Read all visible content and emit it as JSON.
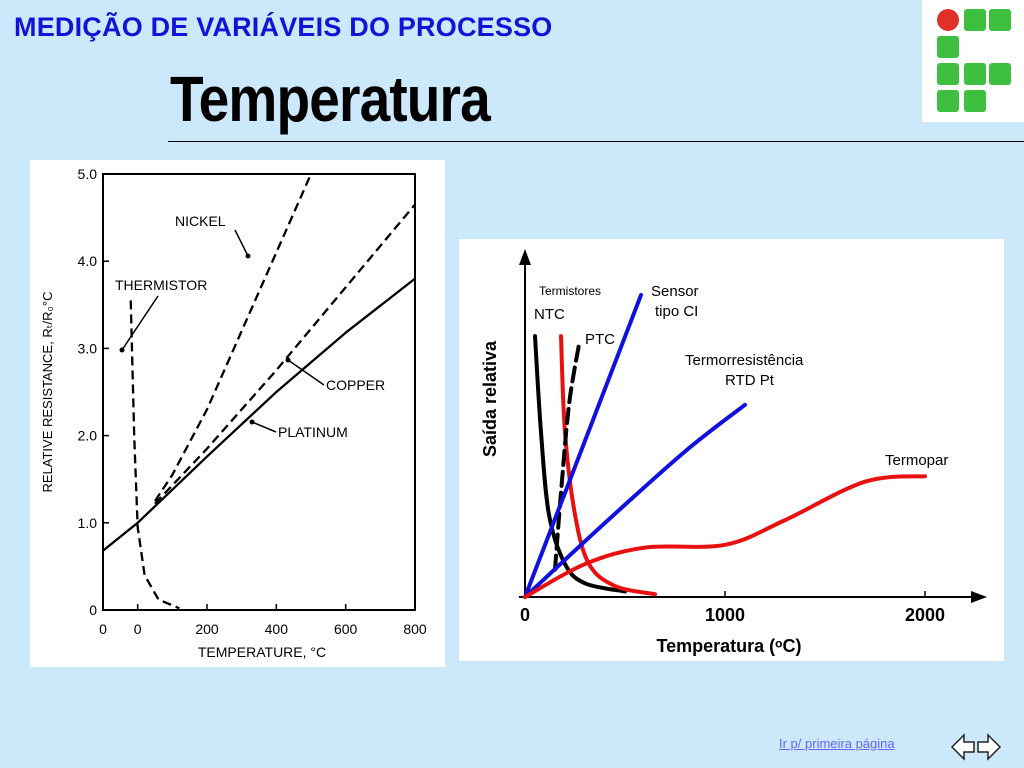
{
  "header": {
    "title": "MEDIÇÃO DE VARIÁVEIS DO PROCESSO",
    "slide_title": "Temperatura"
  },
  "logo": {
    "icon": "institution-logo-icon",
    "colors": {
      "red": "#e0302a",
      "green": "#3fbf3f"
    }
  },
  "footer": {
    "link_label": "Ir p/ primeira página",
    "nav_icon": "double-arrow-icon"
  },
  "chart_data": [
    {
      "type": "line",
      "xlabel": "TEMPERATURE, °C",
      "ylabel": "RELATIVE RESISTANCE, Rₜ/R₀°C",
      "xlim": [
        -100,
        800
      ],
      "ylim": [
        0,
        5
      ],
      "x_tick_labels": [
        "0",
        "0",
        "200",
        "400",
        "600",
        "800"
      ],
      "y_ticks": [
        "0",
        "1.0",
        "2.0",
        "3.0",
        "4.0",
        "5.0"
      ],
      "grid": false,
      "series": [
        {
          "name": "NICKEL",
          "style": "dashed",
          "x": [
            50,
            100,
            200,
            300,
            400,
            500
          ],
          "y": [
            1.25,
            1.55,
            2.3,
            3.2,
            4.1,
            5.0
          ]
        },
        {
          "name": "COPPER",
          "style": "dashed",
          "x": [
            50,
            200,
            400,
            600,
            800
          ],
          "y": [
            1.22,
            1.85,
            2.75,
            3.7,
            4.65
          ]
        },
        {
          "name": "PLATINUM",
          "style": "solid",
          "x": [
            -100,
            0,
            200,
            400,
            600,
            800
          ],
          "y": [
            0.68,
            1.0,
            1.76,
            2.5,
            3.18,
            3.8
          ]
        },
        {
          "name": "THERMISTOR",
          "style": "dashed",
          "x": [
            -20,
            -10,
            0,
            20,
            60,
            120
          ],
          "y": [
            3.55,
            2.0,
            0.95,
            0.4,
            0.12,
            0.02
          ]
        }
      ],
      "annotations": [
        "NICKEL",
        "COPPER",
        "PLATINUM",
        "THERMISTOR"
      ]
    },
    {
      "type": "line",
      "xlabel": "Temperatura (ᵒC)",
      "ylabel": "Saída relativa",
      "xlim": [
        0,
        2300
      ],
      "x_ticks": [
        0,
        1000,
        2000
      ],
      "y_ticks": [],
      "grid": false,
      "series": [
        {
          "name": "NTC",
          "color": "#000000",
          "style": "solid",
          "x": [
            50,
            80,
            120,
            200,
            300,
            500
          ],
          "y": [
            0.95,
            0.6,
            0.3,
            0.12,
            0.05,
            0.02
          ]
        },
        {
          "name": "PTC",
          "color": "#e81010",
          "style": "solid",
          "x": [
            180,
            200,
            250,
            320,
            450,
            650
          ],
          "y": [
            0.95,
            0.6,
            0.3,
            0.12,
            0.04,
            0.01
          ]
        },
        {
          "name": "PTC",
          "color": "#000000",
          "style": "dashed",
          "x": [
            150,
            180,
            220,
            270
          ],
          "y": [
            0.1,
            0.38,
            0.7,
            0.92
          ]
        },
        {
          "name": "Sensor tipo CI",
          "color": "#1010e0",
          "style": "solid",
          "x": [
            0,
            580
          ],
          "y": [
            0,
            1.1
          ]
        },
        {
          "name": "Termorresistência RTD Pt",
          "color": "#1010e0",
          "style": "solid",
          "x": [
            0,
            400,
            800,
            1100
          ],
          "y": [
            0,
            0.27,
            0.53,
            0.7
          ]
        },
        {
          "name": "Termopar",
          "color": "#e81010",
          "style": "solid",
          "x": [
            0,
            300,
            600,
            1000,
            1300,
            1700,
            2000
          ],
          "y": [
            0,
            0.12,
            0.18,
            0.19,
            0.28,
            0.42,
            0.44
          ]
        }
      ],
      "annotations": [
        "Termistores",
        "NTC",
        "PTC",
        "Sensor",
        "tipo CI",
        "Termorresistência",
        "RTD Pt",
        "Termopar"
      ]
    }
  ]
}
